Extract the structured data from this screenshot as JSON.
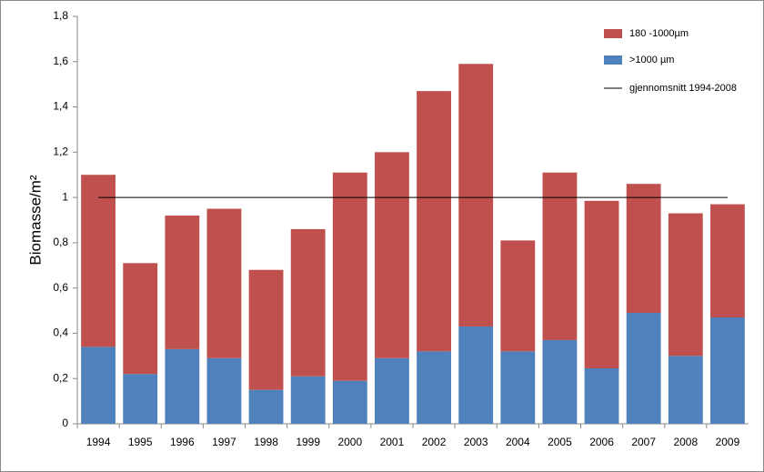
{
  "chart_data": {
    "type": "stacked_bar",
    "y_label": "Biomasse/m²",
    "categories": [
      "1994",
      "1995",
      "1996",
      "1997",
      "1998",
      "1999",
      "2000",
      "2001",
      "2002",
      "2003",
      "2004",
      "2005",
      "2006",
      "2007",
      "2008",
      "2009"
    ],
    "series": [
      {
        "name": "180 -1000µm",
        "color": "#c0504d",
        "values": [
          0.76,
          0.49,
          0.59,
          0.66,
          0.53,
          0.65,
          0.92,
          0.91,
          1.15,
          1.16,
          0.49,
          0.74,
          0.74,
          0.57,
          0.63,
          0.5
        ]
      },
      {
        "name": ">1000 µm",
        "color": "#4f81bd",
        "values": [
          0.34,
          0.22,
          0.33,
          0.29,
          0.15,
          0.21,
          0.19,
          0.29,
          0.32,
          0.43,
          0.32,
          0.37,
          0.245,
          0.49,
          0.3,
          0.47
        ]
      }
    ],
    "average_line": {
      "name": "gjennomsnitt 1994-2008",
      "value": 1,
      "color": "#000000"
    },
    "ylim": [
      0,
      1.8
    ],
    "yticks": [
      0,
      {
        "value": 0.2,
        "label": "0,2"
      },
      {
        "value": 0.4,
        "label": "0,4"
      },
      {
        "value": 0.6,
        "label": "0,6"
      },
      {
        "value": 0.8,
        "label": "0,8"
      },
      1,
      {
        "value": 1.2,
        "label": "1,2"
      },
      {
        "value": 1.4,
        "label": "1,4"
      },
      {
        "value": 1.6,
        "label": "1,6"
      },
      {
        "value": 1.8,
        "label": "1,8"
      }
    ],
    "grid": false
  }
}
